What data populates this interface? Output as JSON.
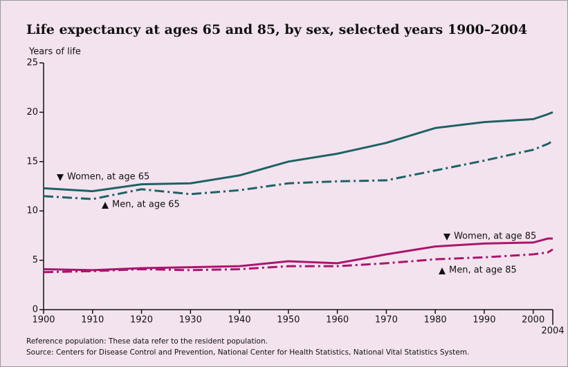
{
  "chart_data": {
    "type": "line",
    "title": "Life expectancy at ages 65 and 85, by sex, selected years 1900–2004",
    "y_label": "Years of life",
    "x": [
      1900,
      1910,
      1920,
      1930,
      1940,
      1950,
      1960,
      1970,
      1980,
      1990,
      2000,
      2003,
      2004
    ],
    "series": [
      {
        "name": "Women, at age 65",
        "color": "#1e6166",
        "style": "solid",
        "values": [
          12.3,
          12.0,
          12.7,
          12.8,
          13.6,
          15.0,
          15.8,
          16.9,
          18.4,
          19.0,
          19.3,
          19.8,
          20.0
        ]
      },
      {
        "name": "Men, at age 65",
        "color": "#1e6166",
        "style": "dashdot",
        "values": [
          11.5,
          11.2,
          12.2,
          11.7,
          12.1,
          12.8,
          13.0,
          13.1,
          14.1,
          15.1,
          16.2,
          16.8,
          17.1
        ]
      },
      {
        "name": "Women, at age 85",
        "color": "#a8166f",
        "style": "solid",
        "values": [
          4.1,
          4.0,
          4.2,
          4.3,
          4.4,
          4.9,
          4.7,
          5.6,
          6.4,
          6.7,
          6.8,
          7.2,
          7.2
        ]
      },
      {
        "name": "Men, at age 85",
        "color": "#a8166f",
        "style": "dashdot",
        "values": [
          3.8,
          3.9,
          4.1,
          4.0,
          4.1,
          4.4,
          4.4,
          4.7,
          5.1,
          5.3,
          5.6,
          5.8,
          6.1
        ]
      }
    ],
    "xlim": [
      1900,
      2004
    ],
    "xticks": [
      1900,
      1910,
      1920,
      1930,
      1940,
      1950,
      1960,
      1970,
      1980,
      1990,
      2000,
      2004
    ],
    "ylim": [
      0,
      25
    ],
    "yticks": [
      0,
      5,
      10,
      15,
      20,
      25
    ],
    "grid": false,
    "notes": [
      "Reference population: These data refer to the resident population.",
      "Source:  Centers for Disease Control and Prevention, National Center for Health Statistics, National Vital Statistics System."
    ]
  }
}
